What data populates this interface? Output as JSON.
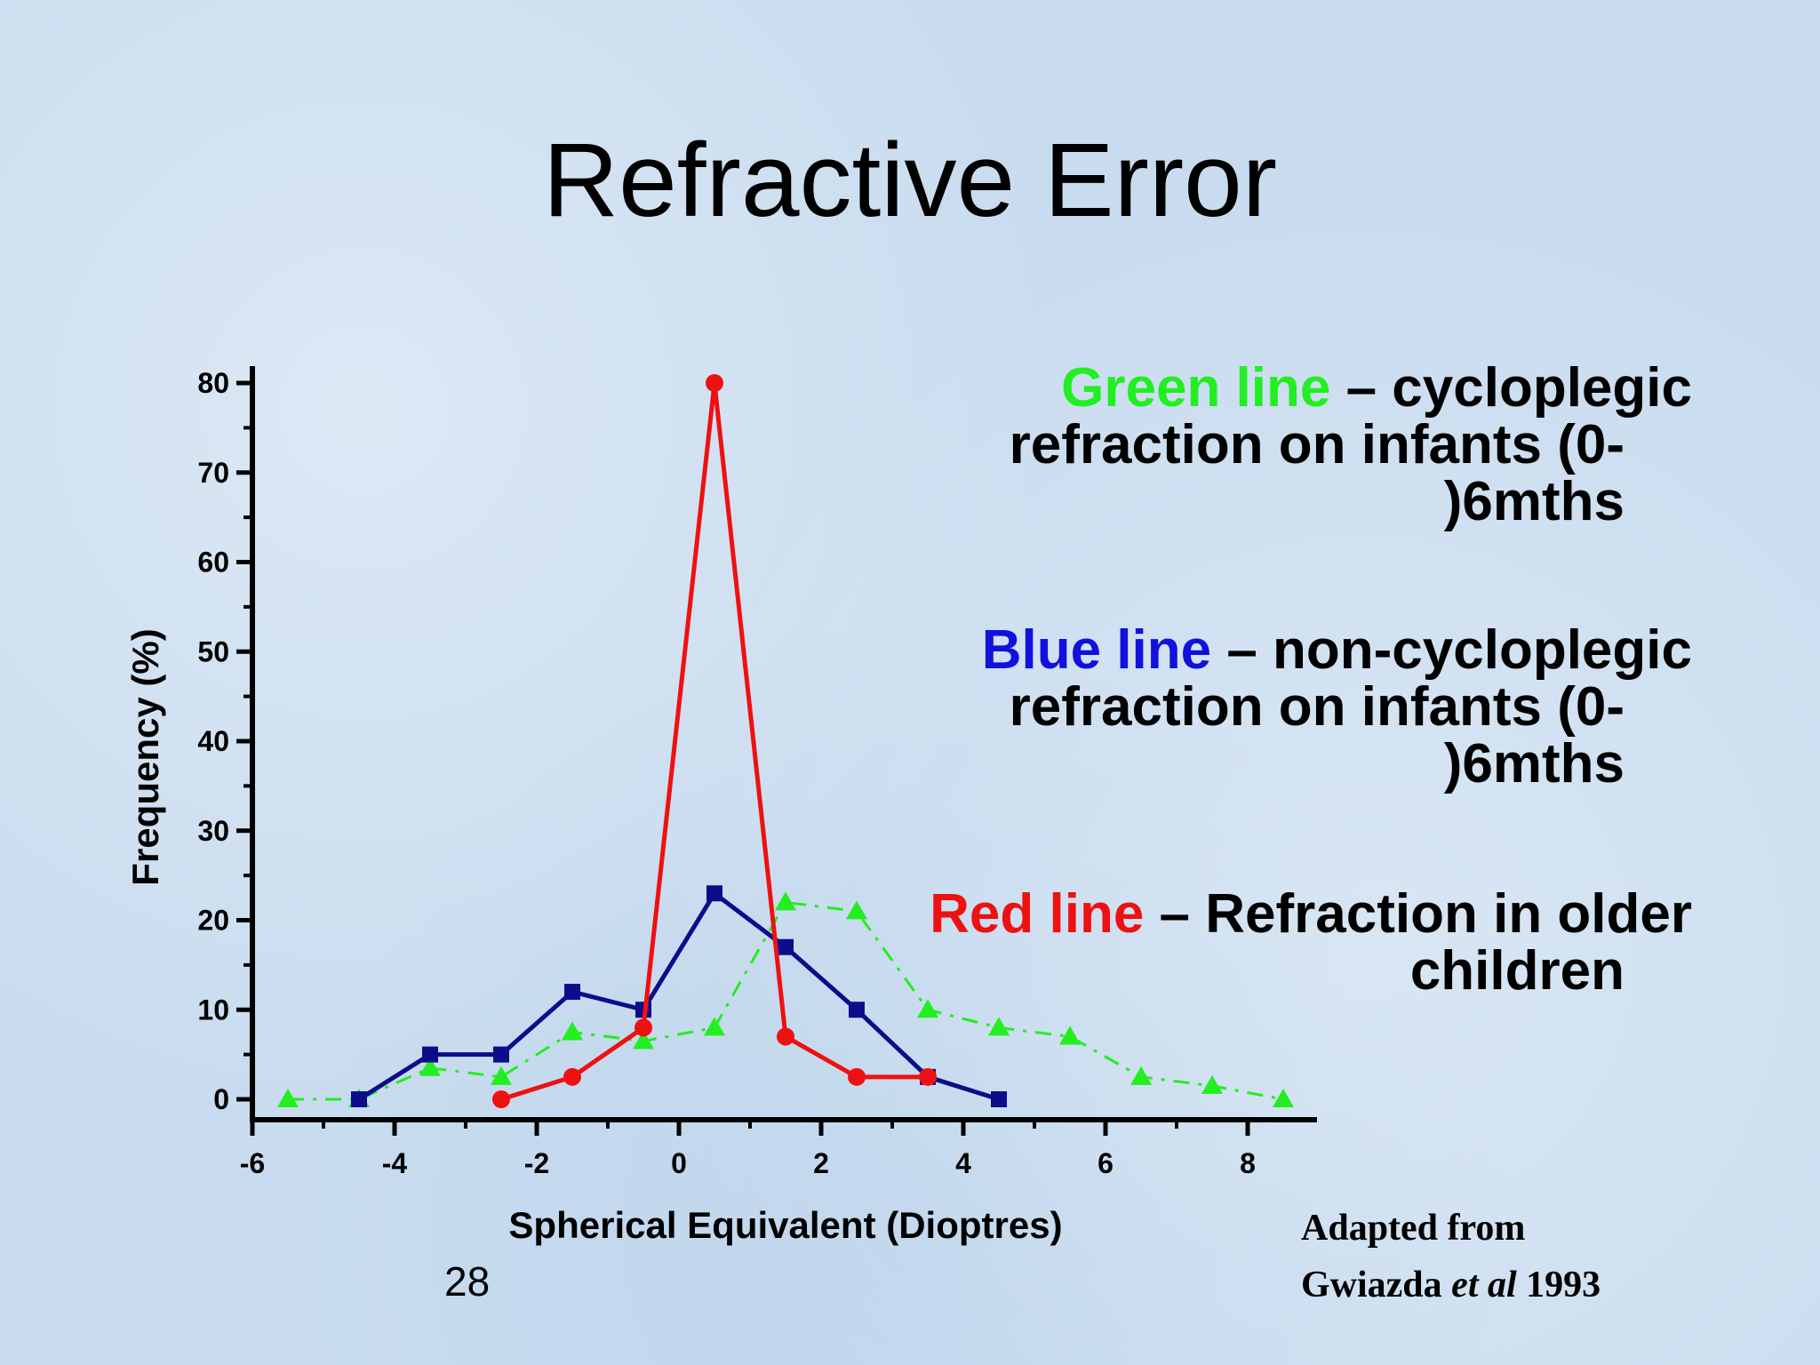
{
  "slide": {
    "title": "Refractive Error",
    "page_number": "28"
  },
  "legend": {
    "green": {
      "name": "Green line",
      "color": "#22ee22",
      "desc_1": " – cycloplegic",
      "desc_2": "refraction on infants (0-",
      "desc_3": ")6mths"
    },
    "blue": {
      "name": "Blue line",
      "color": "#1111dd",
      "desc_1": " – non-cycloplegic",
      "desc_2": "refraction on infants (0-",
      "desc_3": ")6mths"
    },
    "red": {
      "name": "Red line",
      "color": "#ee1111",
      "desc_1": " – Refraction in older",
      "desc_2": "children"
    }
  },
  "citation": {
    "line1": "Adapted from",
    "line2_prefix": "Gwiazda ",
    "line2_italic": "et al",
    "line2_suffix": " 1993"
  },
  "chart_data": {
    "type": "line",
    "title": "",
    "xlabel": "Spherical Equivalent (Dioptres)",
    "ylabel": "Frequency (%)",
    "xlim": [
      -6,
      9
    ],
    "ylim": [
      -2,
      82
    ],
    "xticks": [
      -6,
      -4,
      -2,
      0,
      2,
      4,
      6,
      8
    ],
    "yticks": [
      0,
      10,
      20,
      30,
      40,
      50,
      60,
      70,
      80
    ],
    "grid": false,
    "series": [
      {
        "name": "Green line",
        "color": "#22ee22",
        "marker": "triangle",
        "style": "dash-dot",
        "points": [
          [
            -5.5,
            0
          ],
          [
            -4.5,
            0
          ],
          [
            -3.5,
            3.5
          ],
          [
            -2.5,
            2.5
          ],
          [
            -1.5,
            7.5
          ],
          [
            -0.5,
            6.5
          ],
          [
            0.5,
            8
          ],
          [
            1.5,
            22
          ],
          [
            2.5,
            21
          ],
          [
            3.5,
            10
          ],
          [
            4.5,
            8
          ],
          [
            5.5,
            7
          ],
          [
            6.5,
            2.5
          ],
          [
            7.5,
            1.5
          ],
          [
            8.5,
            0
          ]
        ]
      },
      {
        "name": "Blue line",
        "color": "#0d0d8c",
        "marker": "square",
        "style": "solid",
        "points": [
          [
            -4.5,
            0
          ],
          [
            -3.5,
            5
          ],
          [
            -2.5,
            5
          ],
          [
            -1.5,
            12
          ],
          [
            -0.5,
            10
          ],
          [
            0.5,
            23
          ],
          [
            1.5,
            17
          ],
          [
            2.5,
            10
          ],
          [
            3.5,
            2.5
          ],
          [
            4.5,
            0
          ]
        ]
      },
      {
        "name": "Red line",
        "color": "#ee1111",
        "marker": "circle",
        "style": "solid",
        "points": [
          [
            -2.5,
            0
          ],
          [
            -1.5,
            2.5
          ],
          [
            -0.5,
            8
          ],
          [
            0.5,
            80
          ],
          [
            1.5,
            7
          ],
          [
            2.5,
            2.5
          ],
          [
            3.5,
            2.5
          ]
        ]
      }
    ]
  }
}
